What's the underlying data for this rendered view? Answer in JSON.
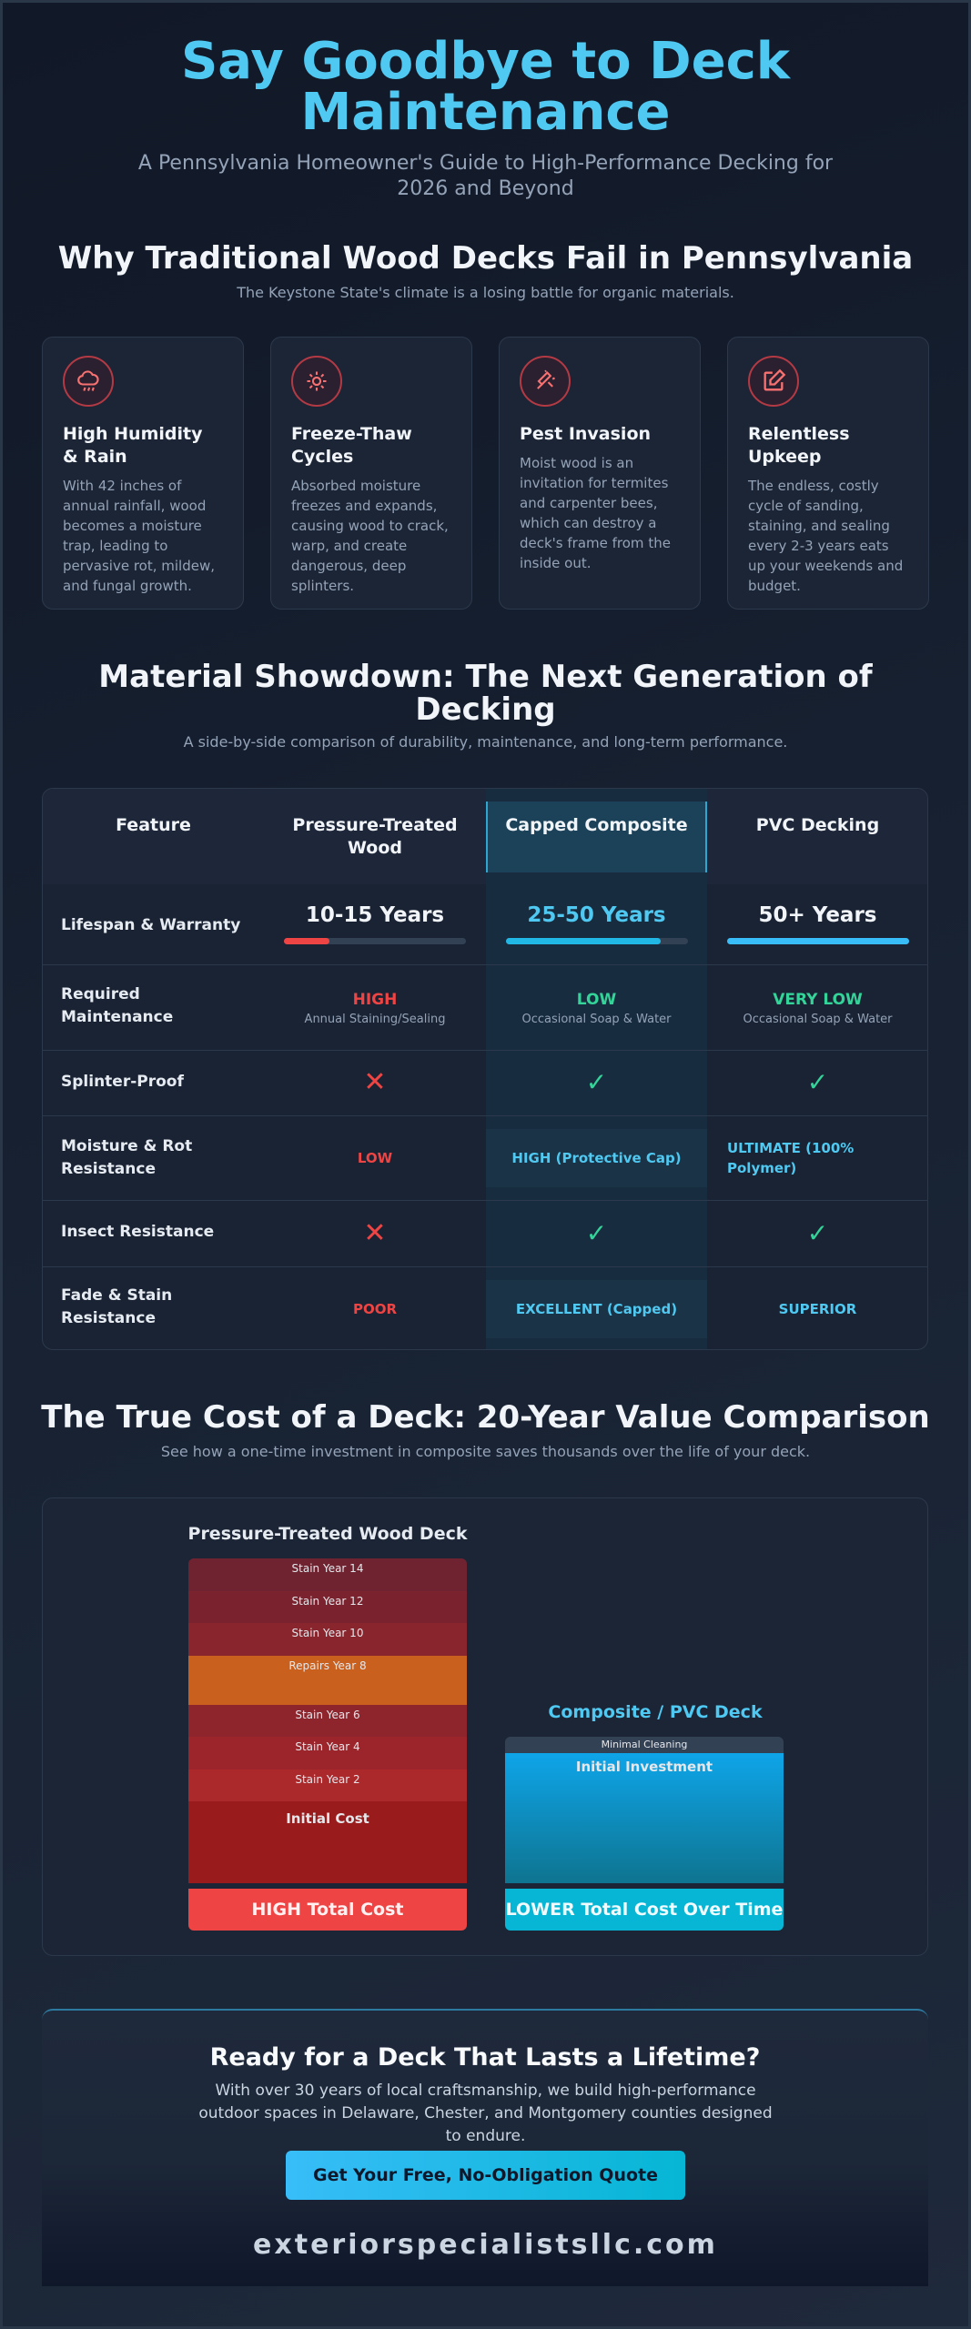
{
  "hero": {
    "title": "Say Goodbye to Deck Maintenance",
    "subtitle": "A Pennsylvania Homeowner's Guide to High-Performance Decking for 2026 and Beyond"
  },
  "fail": {
    "title": "Why Traditional Wood Decks Fail in Pennsylvania",
    "subtitle": "The Keystone State's climate is a losing battle for organic materials.",
    "cards": [
      {
        "icon": "cloud-rain-icon",
        "title": "High Humidity & Rain",
        "desc": "With 42 inches of annual rainfall, wood becomes a moisture trap, leading to pervasive rot, mildew, and fungal growth."
      },
      {
        "icon": "sun-snow-icon",
        "title": "Freeze-Thaw Cycles",
        "desc": "Absorbed moisture freezes and expands, causing wood to crack, warp, and create dangerous, deep splinters."
      },
      {
        "icon": "bug-icon",
        "title": "Pest Invasion",
        "desc": "Moist wood is an invitation for termites and carpenter bees, which can destroy a deck's frame from the inside out."
      },
      {
        "icon": "edit-icon",
        "title": "Relentless Upkeep",
        "desc": "The endless, costly cycle of sanding, staining, and sealing every 2-3 years eats up your weekends and budget."
      }
    ]
  },
  "showdown": {
    "title": "Material Showdown: The Next Generation of Decking",
    "subtitle": "A side-by-side comparison of durability, maintenance, and long-term performance.",
    "headers": [
      "Feature",
      "Pressure-Treated Wood",
      "Capped Composite",
      "PVC Decking"
    ],
    "lifespan": {
      "label": "Lifespan & Warranty",
      "values": [
        "10-15 Years",
        "25-50 Years",
        "50+ Years"
      ],
      "fill": [
        0.25,
        0.85,
        1.0
      ]
    },
    "maintenance": {
      "label": "Required Maintenance",
      "values": [
        "HIGH",
        "LOW",
        "VERY LOW"
      ],
      "notes": [
        "Annual Staining/Sealing",
        "Occasional Soap & Water",
        "Occasional Soap & Water"
      ]
    },
    "splinter": {
      "label": "Splinter-Proof",
      "values": [
        "✕",
        "✓",
        "✓"
      ]
    },
    "moisture": {
      "label": "Moisture & Rot Resistance",
      "values": [
        "LOW",
        "HIGH (Protective Cap)",
        "ULTIMATE (100% Polymer)"
      ]
    },
    "insect": {
      "label": "Insect Resistance",
      "values": [
        "✕",
        "✓",
        "✓"
      ]
    },
    "fade": {
      "label": "Fade & Stain Resistance",
      "values": [
        "POOR",
        "EXCELLENT (Capped)",
        "SUPERIOR"
      ]
    },
    "colors": {
      "bad": "#ef4444",
      "good": "#34d399",
      "accent": "#4fc9f2"
    }
  },
  "cost": {
    "title": "The True Cost of a Deck: 20-Year Value Comparison",
    "subtitle": "See how a one-time investment in composite saves thousands over the life of your deck.",
    "wood": {
      "title": "Pressure-Treated Wood Deck",
      "segments": [
        "Stain Year 14",
        "Stain Year 12",
        "Stain Year 10",
        "Repairs Year 8",
        "Stain Year 6",
        "Stain Year 4",
        "Stain Year 2",
        "Initial Cost"
      ],
      "total": "HIGH Total Cost"
    },
    "composite": {
      "title": "Composite / PVC Deck",
      "segments": [
        "Minimal Cleaning",
        "Initial Investment"
      ],
      "total": "LOWER Total Cost Over Time"
    }
  },
  "cta": {
    "title": "Ready for a Deck That Lasts a Lifetime?",
    "text": "With over 30 years of local craftsmanship, we build high-performance outdoor spaces in Delaware, Chester, and Montgomery counties designed to endure.",
    "button": "Get Your Free, No-Obligation Quote",
    "site": "exteriorspecialistsllc.com"
  }
}
